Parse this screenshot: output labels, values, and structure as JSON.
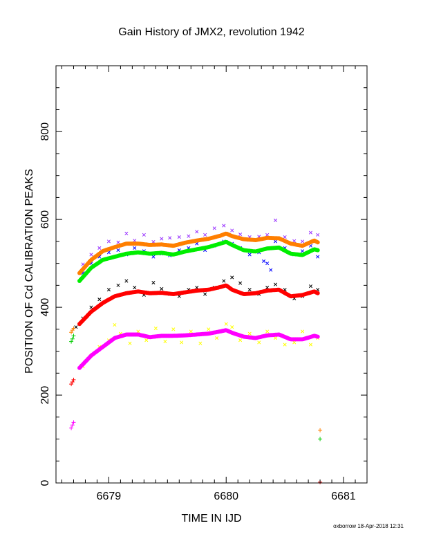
{
  "chart_data": {
    "type": "scatter",
    "title": "Gain History of JMX2, revolution 1942",
    "xlabel": "TIME IN IJD",
    "ylabel": "POSITION OF Cd CALIBRATION PEAKS",
    "xlim": [
      6678.55,
      6681.2
    ],
    "ylim": [
      0,
      950
    ],
    "x_ticks": [
      6679,
      6680,
      6681
    ],
    "y_ticks": [
      0,
      200,
      400,
      600,
      800
    ],
    "grid": false,
    "series": [
      {
        "role": "smoothed",
        "color": "#ff7f00",
        "marker": "dot",
        "x": [
          6678.75,
          6678.85,
          6678.95,
          6679.05,
          6679.15,
          6679.25,
          6679.35,
          6679.45,
          6679.55,
          6679.65,
          6679.75,
          6679.85,
          6679.95,
          6680.0,
          6680.05,
          6680.15,
          6680.25,
          6680.35,
          6680.45,
          6680.55,
          6680.65,
          6680.75,
          6680.78
        ],
        "y": [
          478,
          508,
          528,
          537,
          545,
          545,
          542,
          543,
          540,
          547,
          552,
          556,
          563,
          568,
          562,
          555,
          553,
          558,
          557,
          545,
          540,
          552,
          548
        ]
      },
      {
        "role": "smoothed",
        "color": "#00ee00",
        "marker": "dot",
        "x": [
          6678.75,
          6678.85,
          6678.95,
          6679.05,
          6679.15,
          6679.25,
          6679.35,
          6679.45,
          6679.55,
          6679.65,
          6679.75,
          6679.85,
          6679.95,
          6680.0,
          6680.05,
          6680.15,
          6680.25,
          6680.35,
          6680.45,
          6680.55,
          6680.65,
          6680.75,
          6680.78
        ],
        "y": [
          460,
          490,
          508,
          515,
          522,
          525,
          522,
          524,
          520,
          527,
          532,
          537,
          545,
          549,
          542,
          530,
          527,
          534,
          536,
          522,
          519,
          532,
          530
        ]
      },
      {
        "role": "smoothed",
        "color": "#ff0000",
        "marker": "dot",
        "x": [
          6678.75,
          6678.85,
          6678.95,
          6679.05,
          6679.15,
          6679.25,
          6679.35,
          6679.45,
          6679.55,
          6679.65,
          6679.75,
          6679.85,
          6679.95,
          6680.0,
          6680.05,
          6680.15,
          6680.25,
          6680.35,
          6680.45,
          6680.55,
          6680.65,
          6680.75,
          6680.78
        ],
        "y": [
          362,
          390,
          410,
          425,
          432,
          436,
          432,
          433,
          430,
          434,
          438,
          440,
          446,
          450,
          440,
          430,
          432,
          438,
          440,
          425,
          428,
          436,
          432
        ]
      },
      {
        "role": "smoothed",
        "color": "#ff00ff",
        "marker": "dot",
        "x": [
          6678.75,
          6678.85,
          6678.95,
          6679.05,
          6679.15,
          6679.25,
          6679.35,
          6679.45,
          6679.55,
          6679.65,
          6679.75,
          6679.85,
          6679.95,
          6680.0,
          6680.05,
          6680.15,
          6680.25,
          6680.35,
          6680.45,
          6680.55,
          6680.65,
          6680.75,
          6680.78
        ],
        "y": [
          262,
          290,
          310,
          330,
          338,
          338,
          332,
          335,
          335,
          336,
          338,
          340,
          345,
          348,
          342,
          333,
          330,
          336,
          338,
          327,
          327,
          335,
          333
        ]
      },
      {
        "role": "raw",
        "color": "#9933ff",
        "marker": "x",
        "x": [
          6678.78,
          6678.85,
          6678.92,
          6679.0,
          6679.08,
          6679.15,
          6679.22,
          6679.3,
          6679.38,
          6679.45,
          6679.52,
          6679.6,
          6679.68,
          6679.75,
          6679.82,
          6679.9,
          6679.98,
          6680.05,
          6680.12,
          6680.2,
          6680.28,
          6680.35,
          6680.42,
          6680.5,
          6680.58,
          6680.65,
          6680.72,
          6680.78
        ],
        "y": [
          498,
          520,
          535,
          550,
          548,
          568,
          552,
          565,
          549,
          556,
          558,
          560,
          562,
          572,
          565,
          580,
          586,
          575,
          566,
          560,
          561,
          565,
          598,
          560,
          551,
          550,
          570,
          565
        ]
      },
      {
        "role": "raw",
        "color": "#0000ff",
        "marker": "x",
        "x": [
          6678.78,
          6678.85,
          6678.92,
          6679.0,
          6679.08,
          6679.15,
          6679.22,
          6679.3,
          6679.38,
          6679.45,
          6679.52,
          6679.6,
          6679.68,
          6679.75,
          6679.82,
          6679.9,
          6679.98,
          6680.05,
          6680.12,
          6680.2,
          6680.28,
          6680.32,
          6680.35,
          6680.38,
          6680.42,
          6680.5,
          6680.58,
          6680.65,
          6680.72,
          6680.78
        ],
        "y": [
          478,
          500,
          515,
          525,
          530,
          520,
          535,
          528,
          515,
          522,
          518,
          530,
          535,
          545,
          530,
          540,
          550,
          545,
          535,
          520,
          525,
          505,
          500,
          485,
          550,
          535,
          520,
          528,
          540,
          515
        ]
      },
      {
        "role": "raw",
        "color": "#000000",
        "marker": "x",
        "x": [
          6678.72,
          6678.78,
          6678.85,
          6678.92,
          6679.0,
          6679.08,
          6679.15,
          6679.22,
          6679.3,
          6679.38,
          6679.45,
          6679.52,
          6679.6,
          6679.68,
          6679.75,
          6679.82,
          6679.9,
          6679.98,
          6680.05,
          6680.12,
          6680.2,
          6680.28,
          6680.35,
          6680.42,
          6680.5,
          6680.58,
          6680.65,
          6680.72,
          6680.78
        ],
        "y": [
          355,
          375,
          400,
          418,
          440,
          450,
          460,
          445,
          428,
          456,
          442,
          430,
          425,
          440,
          445,
          430,
          445,
          460,
          468,
          455,
          440,
          430,
          445,
          452,
          440,
          420,
          425,
          448,
          440
        ]
      },
      {
        "role": "raw",
        "color": "#ffff00",
        "marker": "x",
        "x": [
          6678.78,
          6678.85,
          6678.92,
          6679.0,
          6679.05,
          6679.1,
          6679.18,
          6679.25,
          6679.32,
          6679.4,
          6679.48,
          6679.55,
          6679.62,
          6679.7,
          6679.78,
          6679.85,
          6679.92,
          6680.0,
          6680.05,
          6680.12,
          6680.2,
          6680.28,
          6680.35,
          6680.42,
          6680.5,
          6680.58,
          6680.65,
          6680.72,
          6680.78
        ],
        "y": [
          265,
          290,
          310,
          325,
          360,
          340,
          318,
          345,
          325,
          352,
          322,
          350,
          320,
          345,
          318,
          350,
          330,
          362,
          355,
          325,
          340,
          320,
          345,
          330,
          315,
          320,
          345,
          315,
          330
        ]
      },
      {
        "role": "early",
        "color": "#ff7f00",
        "marker": "+",
        "x": [
          6678.68,
          6678.69,
          6678.7
        ],
        "y": [
          343,
          348,
          352
        ]
      },
      {
        "role": "early",
        "color": "#00cc00",
        "marker": "+",
        "x": [
          6678.68,
          6678.69,
          6678.7
        ],
        "y": [
          322,
          328,
          335
        ]
      },
      {
        "role": "early",
        "color": "#ff0000",
        "marker": "+",
        "x": [
          6678.68,
          6678.69,
          6678.7
        ],
        "y": [
          225,
          230,
          235
        ]
      },
      {
        "role": "early",
        "color": "#ff00ff",
        "marker": "+",
        "x": [
          6678.68,
          6678.69,
          6678.7
        ],
        "y": [
          125,
          132,
          138
        ]
      },
      {
        "role": "late",
        "color": "#ff7f00",
        "marker": "+",
        "x": [
          6680.8
        ],
        "y": [
          120
        ]
      },
      {
        "role": "late",
        "color": "#00cc00",
        "marker": "+",
        "x": [
          6680.8
        ],
        "y": [
          100
        ]
      },
      {
        "role": "late",
        "color": "#ff0000",
        "marker": "+",
        "x": [
          6680.8
        ],
        "y": [
          2
        ]
      }
    ]
  },
  "footer": {
    "credit": "oxborrow 18-Apr-2018 12:31"
  }
}
